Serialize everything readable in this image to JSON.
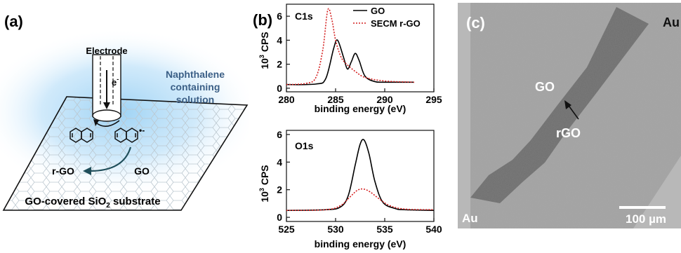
{
  "panel_a": {
    "label": "(a)",
    "electrode": "Electrode",
    "electron": "e",
    "electron_sup": "-",
    "radical_charge": "•-",
    "solution_line1": "Naphthalene",
    "solution_line2": "containing",
    "solution_line3": "solution",
    "rgo": "r-GO",
    "go": "GO",
    "substrate_pre": "GO-covered  SiO",
    "substrate_sub": "2",
    "substrate_post": " substrate"
  },
  "panel_b": {
    "label": "(b)",
    "ylabel_base": "10",
    "ylabel_exp": "3",
    "ylabel_unit": " CPS"
  },
  "panel_c": {
    "label": "(c)",
    "au_top": "Au",
    "au_bottom": "Au",
    "go": "GO",
    "rgo": "rGO",
    "scale": "100 µm"
  },
  "chart_data": [
    {
      "type": "line",
      "annotation": "C1s",
      "xlabel": "binding energy (eV)",
      "ylabel": "10^3 CPS",
      "xlim": [
        280,
        295
      ],
      "ylim": [
        -0.3,
        7
      ],
      "xticks": [
        280,
        285,
        290,
        295
      ],
      "yticks": [
        0,
        2,
        4,
        6
      ],
      "legend": "top-right",
      "series": [
        {
          "name": "GO",
          "color": "#000000",
          "style": "solid",
          "x": [
            280,
            283,
            284,
            284.8,
            285.2,
            285.8,
            286.2,
            286.6,
            287.0,
            287.4,
            288,
            289,
            290,
            293
          ],
          "y": [
            0.3,
            0.35,
            0.8,
            3.3,
            4.0,
            2.6,
            1.6,
            2.2,
            2.9,
            2.3,
            1.0,
            0.55,
            0.5,
            0.5
          ]
        },
        {
          "name": "SECM r-GO",
          "color": "#d42020",
          "style": "dotted",
          "x": [
            280,
            282,
            283,
            283.7,
            284.2,
            284.6,
            285.0,
            285.5,
            286,
            287,
            288,
            290,
            293
          ],
          "y": [
            0.3,
            0.4,
            0.9,
            3.2,
            6.5,
            5.8,
            4.0,
            2.7,
            2.1,
            1.4,
            0.9,
            0.6,
            0.5
          ]
        }
      ]
    },
    {
      "type": "line",
      "annotation": "O1s",
      "xlabel": "binding energy (eV)",
      "ylabel": "10^3 CPS",
      "xlim": [
        525,
        540
      ],
      "ylim": [
        -0.3,
        6.3
      ],
      "xticks": [
        525,
        530,
        535,
        540
      ],
      "yticks": [
        0,
        2,
        4,
        6
      ],
      "series": [
        {
          "name": "GO",
          "color": "#000000",
          "style": "solid",
          "x": [
            525,
            529,
            530.5,
            531.3,
            532.0,
            532.5,
            532.9,
            533.4,
            534.0,
            534.8,
            536,
            537,
            540
          ],
          "y": [
            0.5,
            0.55,
            0.75,
            1.6,
            3.8,
            5.3,
            5.6,
            4.6,
            2.6,
            1.1,
            0.65,
            0.55,
            0.5
          ]
        },
        {
          "name": "SECM r-GO",
          "color": "#d42020",
          "style": "dotted",
          "x": [
            525,
            529,
            530.5,
            531.5,
            532.2,
            532.8,
            533.5,
            534.5,
            535.5,
            537,
            540
          ],
          "y": [
            0.5,
            0.55,
            0.85,
            1.5,
            1.95,
            2.05,
            1.85,
            1.3,
            0.85,
            0.6,
            0.55
          ]
        }
      ]
    }
  ]
}
